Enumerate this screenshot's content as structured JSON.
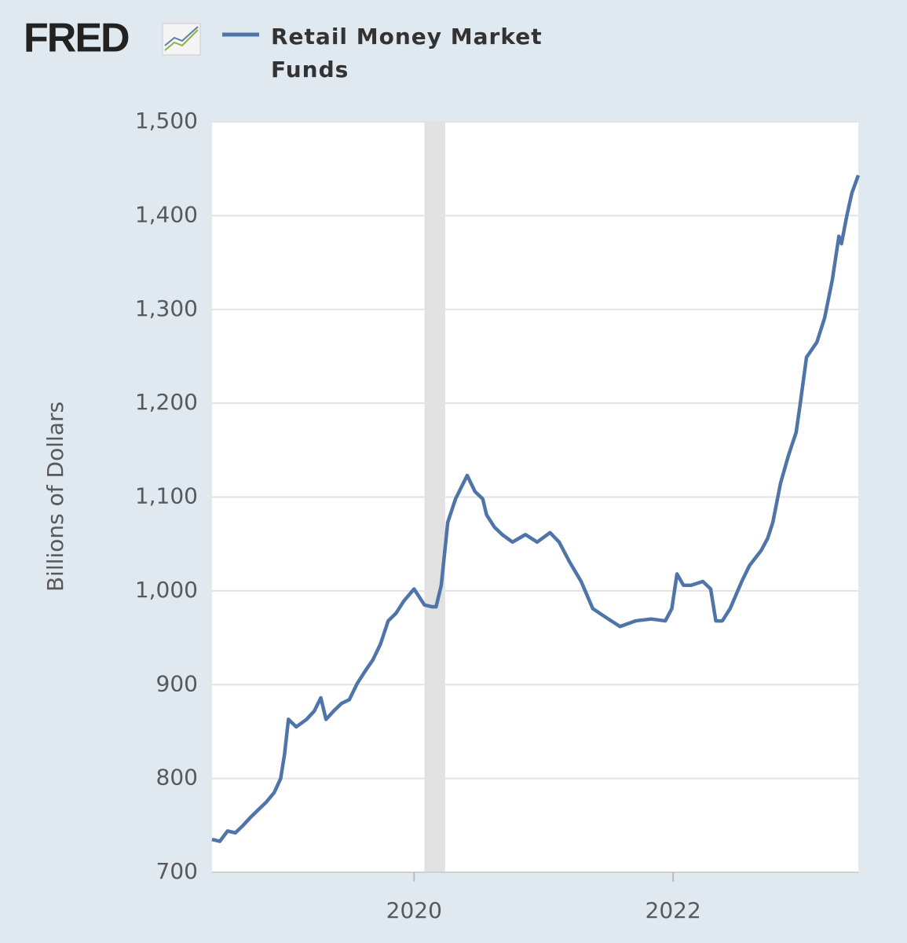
{
  "logo": "FRED",
  "chart_data": {
    "type": "line",
    "ylabel": "Billions of Dollars",
    "x": [
      2018.44,
      2018.5,
      2018.56,
      2018.62,
      2018.68,
      2018.74,
      2018.8,
      2018.86,
      2018.92,
      2018.97,
      2019.0,
      2019.03,
      2019.09,
      2019.17,
      2019.23,
      2019.28,
      2019.32,
      2019.38,
      2019.44,
      2019.5,
      2019.56,
      2019.62,
      2019.68,
      2019.74,
      2019.8,
      2019.86,
      2019.92,
      2020.0,
      2020.08,
      2020.14,
      2020.17,
      2020.21,
      2020.26,
      2020.32,
      2020.41,
      2020.47,
      2020.53,
      2020.56,
      2020.62,
      2020.68,
      2020.76,
      2020.86,
      2020.95,
      2021.05,
      2021.12,
      2021.2,
      2021.29,
      2021.38,
      2021.5,
      2021.59,
      2021.71,
      2021.83,
      2021.94,
      2021.99,
      2022.03,
      2022.08,
      2022.14,
      2022.23,
      2022.29,
      2022.33,
      2022.38,
      2022.44,
      2022.53,
      2022.59,
      2022.68,
      2022.73,
      2022.77,
      2022.83,
      2022.89,
      2022.95,
      2022.98,
      2023.03,
      2023.11,
      2023.17,
      2023.23,
      2023.28,
      2023.3,
      2023.34,
      2023.38,
      2023.43
    ],
    "series": [
      {
        "name": "Retail Money Market Funds",
        "color": "#4e74a8",
        "values": [
          735,
          733,
          744,
          742,
          750,
          759,
          767,
          775,
          785,
          800,
          826,
          863,
          855,
          863,
          872,
          886,
          863,
          872,
          880,
          884,
          901,
          914,
          926,
          943,
          968,
          976,
          989,
          1002,
          985,
          983,
          983,
          1006,
          1073,
          1098,
          1123,
          1106,
          1098,
          1081,
          1068,
          1060,
          1052,
          1060,
          1052,
          1062,
          1052,
          1031,
          1010,
          981,
          970,
          962,
          968,
          970,
          968,
          981,
          1018,
          1006,
          1006,
          1010,
          1002,
          968,
          968,
          981,
          1010,
          1027,
          1043,
          1056,
          1073,
          1115,
          1144,
          1169,
          1198,
          1249,
          1265,
          1291,
          1332,
          1378,
          1370,
          1399,
          1424,
          1443
        ]
      }
    ],
    "xlim": [
      2018.44,
      2023.43
    ],
    "xticks": [
      2020,
      2022
    ],
    "ylim": [
      700,
      1500
    ],
    "yticks": [
      700,
      800,
      900,
      {
        "value": 1000,
        "label": "1,000"
      },
      {
        "value": 1100,
        "label": "1,100"
      },
      {
        "value": 1200,
        "label": "1,200"
      },
      {
        "value": 1300,
        "label": "1,300"
      },
      {
        "value": 1400,
        "label": "1,400"
      },
      {
        "value": 1500,
        "label": "1,500"
      }
    ],
    "grid": true,
    "shaded_range": [
      2020.08,
      2020.24
    ],
    "shaded_color": "#e1e1e1"
  }
}
